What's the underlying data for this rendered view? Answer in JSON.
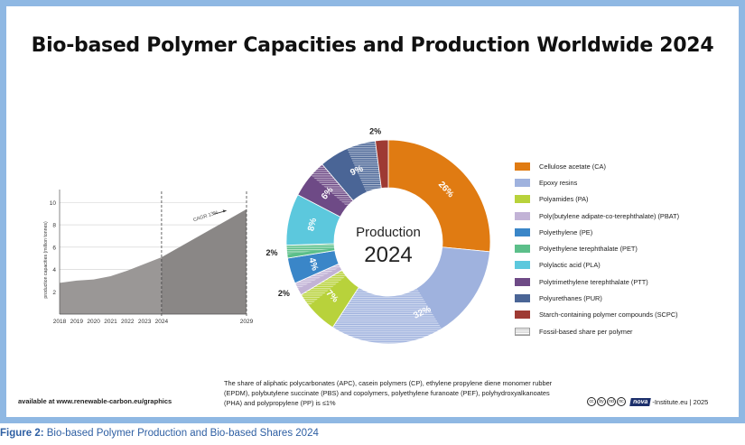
{
  "title": "Bio-based Polymer Capacities and Production Worldwide 2024",
  "colors": {
    "frame": "#8fb8e3",
    "area_left": "#9a9796",
    "area_right": "#8a8786",
    "caption": "#2e5fa3"
  },
  "chart_data": [
    {
      "type": "area",
      "ylabel": "production capacities (million tonnes)",
      "x": [
        2018,
        2019,
        2020,
        2021,
        2022,
        2023,
        2024,
        2029
      ],
      "x_ticks": [
        "2018",
        "2019",
        "2020",
        "2021",
        "2022",
        "2023",
        "2024",
        "2029"
      ],
      "y_ticks": [
        "2",
        "4",
        "6",
        "8",
        "10"
      ],
      "ylim": [
        0,
        11
      ],
      "values": [
        2.8,
        3.0,
        3.1,
        3.4,
        3.9,
        4.5,
        5.1,
        9.4
      ],
      "annotation": "CAGR 13%",
      "grid": true
    },
    {
      "type": "pie",
      "center_label": [
        "Production",
        "2024"
      ],
      "slices": [
        {
          "name": "Cellulose acetate (CA)",
          "value": 26,
          "color": "#e07b12",
          "label": "26%",
          "fossil_fraction": 0.0
        },
        {
          "name": "Epoxy resins",
          "value": 32,
          "color": "#9fb2de",
          "label": "32%",
          "fossil_fraction": 0.55
        },
        {
          "name": "Polyamides (PA)",
          "value": 7,
          "color": "#b8d23b",
          "label": "7%",
          "fossil_fraction": 0.3
        },
        {
          "name": "Poly(butylene adipate-co-terephthalate) (PBAT)",
          "value": 2,
          "color": "#c2b3d6",
          "label": "2%",
          "fossil_fraction": 0.5
        },
        {
          "name": "Polyethylene (PE)",
          "value": 4,
          "color": "#3a86c8",
          "label": "4%",
          "fossil_fraction": 0.0
        },
        {
          "name": "Polyethylene terephthalate (PET)",
          "value": 2,
          "color": "#5cbf8a",
          "label": "2%",
          "fossil_fraction": 0.7
        },
        {
          "name": "Polylactic acid (PLA)",
          "value": 8,
          "color": "#5cc8dd",
          "label": "8%",
          "fossil_fraction": 0.0
        },
        {
          "name": "Polytrimethylene terephthalate (PTT)",
          "value": 6,
          "color": "#6e4a86",
          "label": "6%",
          "fossil_fraction": 0.4
        },
        {
          "name": "Polyurethanes (PUR)",
          "value": 9,
          "color": "#4a6596",
          "label": "9%",
          "fossil_fraction": 0.5
        },
        {
          "name": "Starch-containing polymer compounds (SCPC)",
          "value": 2,
          "color": "#9e3a33",
          "label": "2%",
          "fossil_fraction": 0.0
        }
      ],
      "legend_extra": "Fossil-based share per polymer",
      "legend_placement": "right"
    }
  ],
  "footnote": "The share of aliphatic polycarbonates (APC), casein polymers (CP), ethylene propylene diene monomer rubber (EPDM), polybutylene succinate (PBS) and copolymers, polyethylene furanoate (PEF), polyhydroxyalkanoates (PHA) and polypropylene (PP) is ≤1%",
  "source": "available at www.renewable-carbon.eu/graphics",
  "credit": {
    "cc_icons": [
      "cc",
      "by",
      "nd",
      "nc"
    ],
    "nova": "nova",
    "text": "-Institute.eu | 2025"
  },
  "caption": {
    "label": "Figure 2:",
    "text": " Bio-based Polymer Production and Bio-based Shares 2024"
  }
}
